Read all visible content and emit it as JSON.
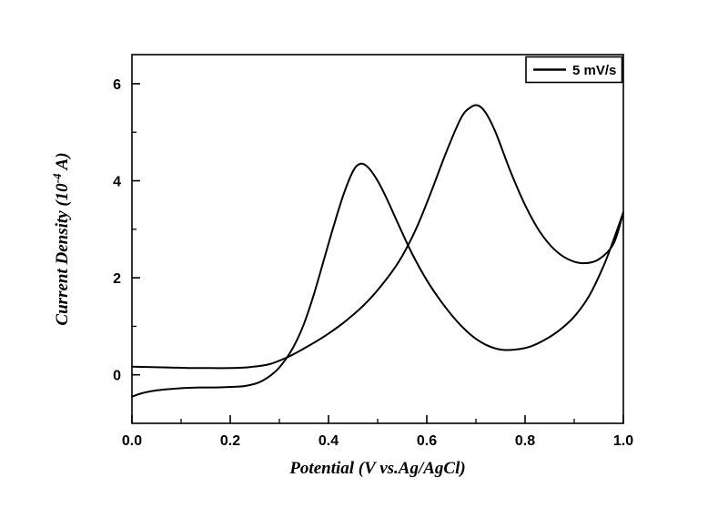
{
  "chart_data": {
    "type": "line",
    "title": "",
    "xlabel": "Potential (V vs.Ag/AgCl)",
    "ylabel": "Current Density (10^-4 A)",
    "ylabel_parts": {
      "pre": "Current Density  (10",
      "sup": "-4",
      "post": " A)"
    },
    "xlim": [
      0.0,
      1.0
    ],
    "ylim": [
      -1.0,
      6.6
    ],
    "x_tick_labels": [
      "0.0",
      "0.2",
      "0.4",
      "0.6",
      "0.8",
      "1.0"
    ],
    "x_major_ticks": [
      0.0,
      0.2,
      0.4,
      0.6,
      0.8,
      1.0
    ],
    "x_minor_ticks": [
      0.1,
      0.3,
      0.5,
      0.7,
      0.9
    ],
    "y_tick_labels": [
      "0",
      "2",
      "4",
      "6"
    ],
    "y_major_ticks": [
      0,
      2,
      4,
      6
    ],
    "y_minor_ticks": [
      1,
      3,
      5
    ],
    "grid": false,
    "legend": {
      "label": "5 mV/s",
      "position": "top-right"
    },
    "line_color": "#000000",
    "frame_color": "#000000",
    "series": [
      {
        "name": "cv-branch-anodic-peak-0.47V",
        "x": [
          0.0,
          0.02,
          0.05,
          0.08,
          0.11,
          0.14,
          0.17,
          0.2,
          0.23,
          0.26,
          0.29,
          0.31,
          0.33,
          0.35,
          0.37,
          0.39,
          0.41,
          0.43,
          0.45,
          0.465,
          0.48,
          0.5,
          0.52,
          0.54,
          0.57,
          0.6,
          0.63,
          0.66,
          0.69,
          0.72,
          0.75,
          0.78,
          0.81,
          0.84,
          0.87,
          0.9,
          0.93,
          0.96,
          0.98,
          1.0
        ],
        "y": [
          -0.45,
          -0.38,
          -0.32,
          -0.29,
          -0.27,
          -0.26,
          -0.26,
          -0.25,
          -0.23,
          -0.15,
          0.05,
          0.28,
          0.6,
          1.05,
          1.65,
          2.35,
          3.05,
          3.7,
          4.2,
          4.35,
          4.28,
          4.0,
          3.6,
          3.15,
          2.5,
          1.95,
          1.5,
          1.12,
          0.82,
          0.62,
          0.52,
          0.52,
          0.58,
          0.72,
          0.92,
          1.2,
          1.62,
          2.25,
          2.78,
          3.35
        ]
      },
      {
        "name": "cv-branch-anodic-peak-0.70V",
        "x": [
          0.0,
          0.04,
          0.08,
          0.12,
          0.16,
          0.2,
          0.24,
          0.28,
          0.32,
          0.36,
          0.4,
          0.44,
          0.48,
          0.52,
          0.55,
          0.58,
          0.61,
          0.64,
          0.67,
          0.69,
          0.705,
          0.72,
          0.74,
          0.77,
          0.8,
          0.83,
          0.86,
          0.89,
          0.92,
          0.95,
          0.98,
          1.0
        ],
        "y": [
          0.17,
          0.16,
          0.15,
          0.14,
          0.14,
          0.14,
          0.16,
          0.22,
          0.38,
          0.6,
          0.85,
          1.15,
          1.52,
          2.0,
          2.45,
          3.05,
          3.8,
          4.6,
          5.3,
          5.52,
          5.55,
          5.4,
          5.0,
          4.2,
          3.5,
          2.95,
          2.58,
          2.37,
          2.3,
          2.38,
          2.7,
          3.35
        ]
      }
    ]
  }
}
